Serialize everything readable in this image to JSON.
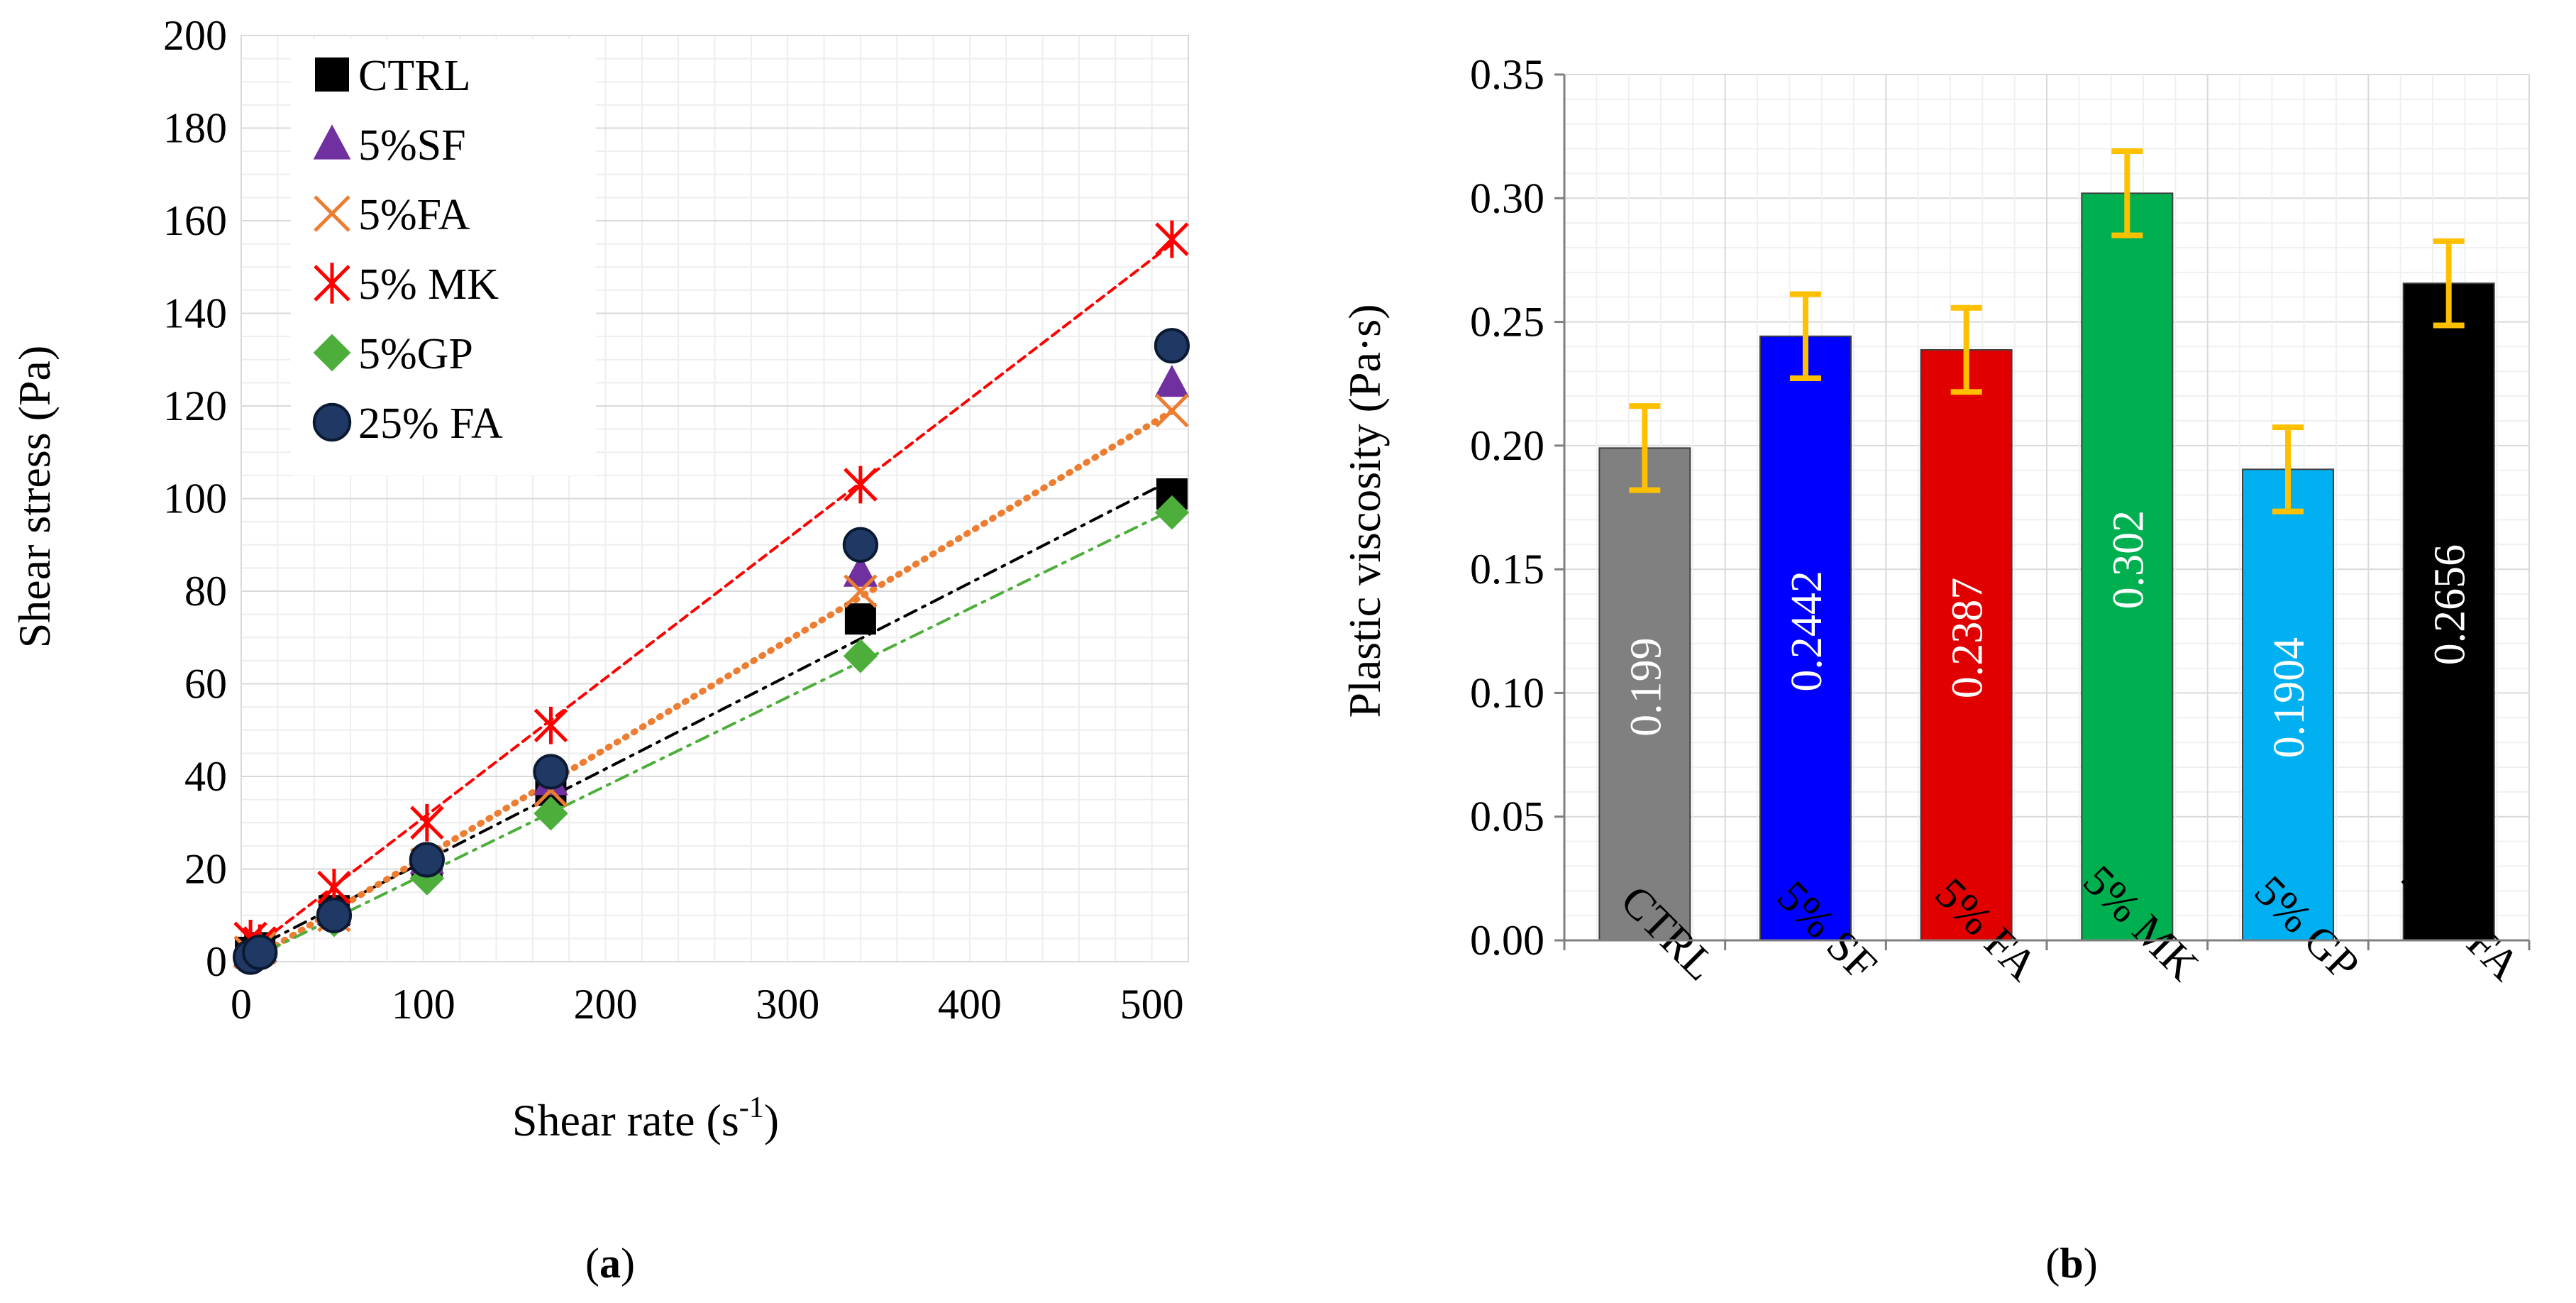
{
  "chart_data": [
    {
      "type": "scatter",
      "panel_label": "(a)",
      "panel_letter": "a",
      "xlabel": "Shear rate (s",
      "xlabel_sup": "-1",
      "xlabel_end": ")",
      "ylabel": "Shear stress (Pa)",
      "xlim": [
        0,
        520
      ],
      "ylim": [
        0,
        200
      ],
      "xticks": [
        0,
        100,
        200,
        300,
        400,
        500
      ],
      "yticks": [
        0,
        20,
        40,
        60,
        80,
        100,
        120,
        140,
        160,
        180,
        200
      ],
      "grid": true,
      "legend_position": "top-left",
      "series": [
        {
          "name": "CTRL",
          "marker": "square",
          "color": "#000000",
          "trend_color": "#000000",
          "trend_style": "dash-dot",
          "x": [
            5.1,
            10.2,
            51,
            102,
            170,
            340,
            511
          ],
          "y": [
            2,
            3,
            11,
            21,
            37,
            74,
            101
          ]
        },
        {
          "name": "5%SF",
          "marker": "triangle",
          "color": "#7030A0",
          "trend_color": "#7030A0",
          "trend_style": "none",
          "x": [
            5.1,
            10.2,
            51,
            102,
            170,
            340,
            511
          ],
          "y": [
            2,
            3,
            11,
            22,
            39,
            84,
            125
          ]
        },
        {
          "name": "5%FA",
          "marker": "x",
          "color": "#ED7D31",
          "trend_color": "#ED7D31",
          "trend_style": "dotted",
          "x": [
            5.1,
            10.2,
            51,
            102,
            170,
            340,
            511
          ],
          "y": [
            2,
            3,
            10,
            21,
            37,
            80,
            119
          ]
        },
        {
          "name": "5% MK",
          "marker": "star",
          "color": "#FF0000",
          "trend_color": "#FF0000",
          "trend_style": "dashed",
          "x": [
            5.1,
            10.2,
            51,
            102,
            170,
            340,
            511
          ],
          "y": [
            5,
            4,
            16,
            30,
            51,
            103,
            156
          ]
        },
        {
          "name": "5%GP",
          "marker": "diamond",
          "color": "#4EAE3C",
          "trend_color": "#4EAE3C",
          "trend_style": "dash-dot",
          "x": [
            5.1,
            10.2,
            51,
            102,
            170,
            340,
            511
          ],
          "y": [
            1,
            2,
            9,
            18,
            32,
            66,
            97
          ]
        },
        {
          "name": "25% FA",
          "marker": "circle",
          "color": "#1F3864",
          "trend_color": "#1F3864",
          "trend_style": "none",
          "x": [
            5.1,
            10.2,
            51,
            102,
            170,
            340,
            511
          ],
          "y": [
            1,
            2,
            10,
            22,
            41,
            90,
            133
          ]
        }
      ]
    },
    {
      "type": "bar",
      "panel_label": "(b)",
      "panel_letter": "b",
      "xlabel": "",
      "ylabel": "Plastic viscosity (Pa·s)",
      "ylim": [
        0,
        0.35
      ],
      "yticks": [
        "0.00",
        "0.05",
        "0.10",
        "0.15",
        "0.20",
        "0.25",
        "0.30",
        "0.35"
      ],
      "grid": true,
      "categories": [
        "CTRL",
        "5% SF",
        "5% FA",
        "5% MK",
        "5% GP",
        "25% FA"
      ],
      "values": [
        0.199,
        0.2442,
        0.2387,
        0.302,
        0.1904,
        0.2656
      ],
      "value_labels": [
        "0.199",
        "0.2442",
        "0.2387",
        "0.302",
        "0.1904",
        "0.2656"
      ],
      "errors": [
        0.017,
        0.017,
        0.017,
        0.017,
        0.017,
        0.017
      ],
      "bar_colors": [
        "#808080",
        "#0000FF",
        "#E00000",
        "#00B050",
        "#00B0F0",
        "#000000"
      ],
      "error_color": "#FFC000"
    }
  ]
}
